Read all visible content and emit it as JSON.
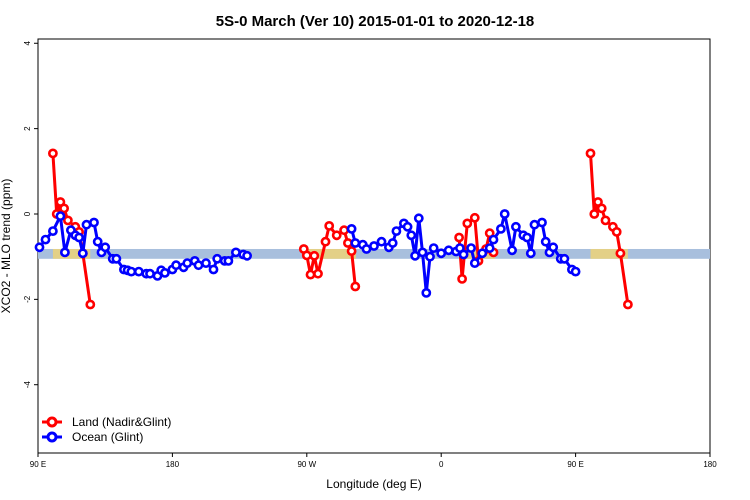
{
  "chart_data": {
    "type": "line",
    "title": "5S-0 March (Ver 10)   2015-01-01 to 2020-12-18",
    "xlabel": "Longitude (deg E)",
    "ylabel": "XCO2 - MLO trend (ppm)",
    "ylim": [
      -5.6,
      4.1
    ],
    "y_ticks": [
      4,
      2,
      0,
      -2,
      -4
    ],
    "x_ticks": [
      {
        "pos": 90,
        "label": "90 E"
      },
      {
        "pos": 180,
        "label": "180"
      },
      {
        "pos": 270,
        "label": "90 W"
      },
      {
        "pos": 360,
        "label": "0"
      },
      {
        "pos": 450,
        "label": "90 E"
      },
      {
        "pos": 540,
        "label": "180"
      }
    ],
    "band": {
      "low": -1.05,
      "high": -0.82,
      "color": "#a8bfdd",
      "highlight_color": "#f7d56a"
    },
    "grid": false,
    "legend_position": "bottom-left",
    "series": [
      {
        "name": "Land (Nadir&Glint)",
        "color": "#ff0000",
        "segments": [
          [
            [
              100,
              1.42
            ],
            [
              102.5,
              0.0
            ],
            [
              105,
              0.28
            ],
            [
              107.5,
              0.13
            ],
            [
              110,
              -0.15
            ],
            [
              115,
              -0.3
            ],
            [
              117.5,
              -0.42
            ],
            [
              120,
              -0.92
            ],
            [
              125,
              -2.12
            ]
          ],
          [
            [
              268,
              -0.82
            ],
            [
              270,
              -0.97
            ],
            [
              272.5,
              -1.42
            ],
            [
              275,
              -0.98
            ],
            [
              277.5,
              -1.4
            ],
            [
              282.5,
              -0.65
            ],
            [
              285,
              -0.28
            ],
            [
              290,
              -0.5
            ],
            [
              295,
              -0.38
            ],
            [
              297.5,
              -0.68
            ],
            [
              300,
              -0.87
            ],
            [
              302.5,
              -1.7
            ]
          ],
          [
            [
              372,
              -0.55
            ],
            [
              374,
              -1.52
            ],
            [
              377.5,
              -0.22
            ],
            [
              382.5,
              -0.09
            ],
            [
              385,
              -1.1
            ],
            [
              390,
              -0.82
            ],
            [
              392.5,
              -0.45
            ],
            [
              395,
              -0.9
            ]
          ],
          [
            [
              460,
              1.42
            ],
            [
              462.5,
              0.0
            ],
            [
              465,
              0.28
            ],
            [
              467.5,
              0.13
            ],
            [
              470,
              -0.15
            ],
            [
              475,
              -0.3
            ],
            [
              477.5,
              -0.42
            ],
            [
              480,
              -0.92
            ],
            [
              485,
              -2.12
            ]
          ]
        ]
      },
      {
        "name": "Ocean (Glint)",
        "color": "#0000ff",
        "segments": [
          [
            [
              91,
              -0.78
            ],
            [
              95,
              -0.6
            ],
            [
              100,
              -0.4
            ],
            [
              105,
              -0.05
            ],
            [
              108,
              -0.9
            ],
            [
              112,
              -0.38
            ],
            [
              115,
              -0.5
            ],
            [
              117.5,
              -0.55
            ],
            [
              120,
              -0.92
            ],
            [
              122.5,
              -0.25
            ],
            [
              127.5,
              -0.2
            ],
            [
              130,
              -0.65
            ],
            [
              132.5,
              -0.9
            ],
            [
              135,
              -0.78
            ],
            [
              140,
              -1.05
            ],
            [
              142.5,
              -1.05
            ],
            [
              147.5,
              -1.3
            ],
            [
              150,
              -1.32
            ],
            [
              152.5,
              -1.35
            ],
            [
              157.5,
              -1.35
            ],
            [
              162.5,
              -1.4
            ],
            [
              165,
              -1.4
            ],
            [
              170,
              -1.45
            ],
            [
              172.5,
              -1.32
            ],
            [
              175,
              -1.38
            ],
            [
              180,
              -1.3
            ],
            [
              182.5,
              -1.2
            ],
            [
              187.5,
              -1.25
            ],
            [
              190,
              -1.15
            ],
            [
              195,
              -1.1
            ],
            [
              197.5,
              -1.2
            ],
            [
              202.5,
              -1.15
            ],
            [
              207.5,
              -1.3
            ],
            [
              210,
              -1.05
            ],
            [
              215,
              -1.1
            ],
            [
              217.5,
              -1.1
            ],
            [
              222.5,
              -0.9
            ],
            [
              227.5,
              -0.95
            ],
            [
              230,
              -0.98
            ]
          ],
          [
            [
              300,
              -0.35
            ],
            [
              302.5,
              -0.68
            ],
            [
              307.5,
              -0.72
            ],
            [
              310,
              -0.82
            ],
            [
              315,
              -0.75
            ],
            [
              320,
              -0.65
            ],
            [
              325,
              -0.78
            ],
            [
              327.5,
              -0.68
            ],
            [
              330,
              -0.4
            ],
            [
              335,
              -0.22
            ],
            [
              337.5,
              -0.3
            ],
            [
              340,
              -0.5
            ],
            [
              342.5,
              -0.98
            ],
            [
              345,
              -0.1
            ],
            [
              347.5,
              -0.9
            ],
            [
              350,
              -1.85
            ],
            [
              352.5,
              -1.0
            ],
            [
              355,
              -0.8
            ],
            [
              360,
              -0.92
            ],
            [
              365,
              -0.85
            ],
            [
              370,
              -0.88
            ],
            [
              372.5,
              -0.8
            ],
            [
              375,
              -0.95
            ],
            [
              380,
              -0.8
            ],
            [
              382.5,
              -1.15
            ],
            [
              387.5,
              -0.92
            ],
            [
              392.5,
              -0.8
            ],
            [
              395,
              -0.6
            ],
            [
              400,
              -0.35
            ],
            [
              402.5,
              -0.0
            ],
            [
              407.5,
              -0.85
            ],
            [
              410,
              -0.3
            ],
            [
              415,
              -0.5
            ],
            [
              417.5,
              -0.55
            ],
            [
              420,
              -0.92
            ],
            [
              422.5,
              -0.25
            ],
            [
              427.5,
              -0.2
            ],
            [
              430,
              -0.65
            ],
            [
              432.5,
              -0.9
            ],
            [
              435,
              -0.78
            ],
            [
              440,
              -1.05
            ],
            [
              442.5,
              -1.05
            ],
            [
              447.5,
              -1.3
            ],
            [
              450,
              -1.35
            ]
          ]
        ]
      }
    ]
  }
}
